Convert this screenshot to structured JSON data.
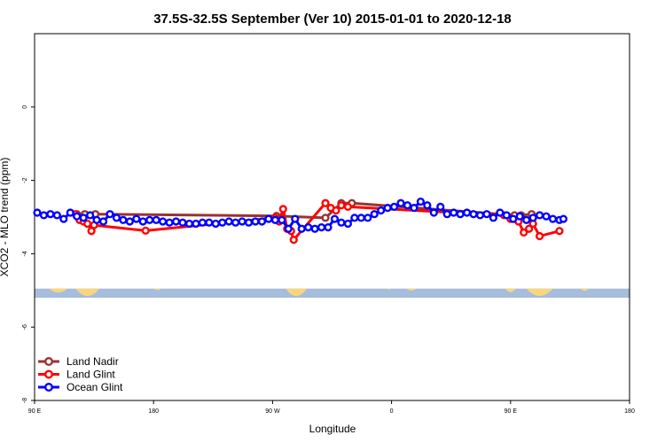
{
  "chart_data": {
    "type": "scatter",
    "title": "37.5S-32.5S September (Ver 10)   2015-01-01 to 2020-12-18",
    "xlabel": "Longitude",
    "ylabel": "XCO2 - MLO trend (ppm)",
    "xlim": [
      90,
      450
    ],
    "ylim": [
      -8,
      2
    ],
    "x_ticks": [
      {
        "value": 90,
        "label": "90 E"
      },
      {
        "value": 180,
        "label": "180"
      },
      {
        "value": 270,
        "label": "90 W"
      },
      {
        "value": 360,
        "label": "0"
      },
      {
        "value": 450,
        "label": "90 E"
      },
      {
        "value": 540,
        "label": "180"
      }
    ],
    "y_ticks": [
      {
        "value": 0,
        "label": "0"
      },
      {
        "value": -2,
        "label": "-2"
      },
      {
        "value": -4,
        "label": "-4"
      },
      {
        "value": -6,
        "label": "-6"
      },
      {
        "value": -8,
        "label": "-8"
      }
    ],
    "grid": false,
    "legend_position": "bottom-left",
    "map_strip": {
      "y_top": -4.95,
      "y_bottom": -5.2,
      "ocean_color": "#a6bddb",
      "land_color": "#f8d57e"
    },
    "series": [
      {
        "name": "Land Nadir",
        "color": "#993333",
        "x": [
          122,
          128,
          136,
          273,
          310,
          322,
          330,
          453,
          458,
          466
        ],
        "y": [
          -2.92,
          -2.92,
          -2.92,
          -2.97,
          -3.02,
          -2.62,
          -2.62,
          -2.95,
          -2.95,
          -2.92
        ]
      },
      {
        "name": "Land Glint",
        "color": "#ff0000",
        "x": [
          121,
          124,
          127,
          130,
          133,
          135,
          174,
          272,
          275,
          278,
          281,
          284,
          286,
          310,
          314,
          318,
          322,
          327,
          445,
          450,
          456,
          460,
          464,
          467,
          472,
          487
        ],
        "y": [
          -2.92,
          -3.08,
          -3.12,
          -3.18,
          -3.38,
          -3.22,
          -3.37,
          -3.02,
          -3.12,
          -2.78,
          -3.32,
          -3.38,
          -3.62,
          -2.62,
          -2.75,
          -2.82,
          -2.68,
          -2.72,
          -2.95,
          -3.05,
          -3.12,
          -3.42,
          -3.32,
          -3.18,
          -3.52,
          -3.38
        ]
      },
      {
        "name": "Ocean Glint",
        "color": "#0000ff",
        "x": [
          92,
          97,
          102,
          107,
          112,
          117,
          122,
          127,
          132,
          137,
          142,
          147,
          152,
          157,
          162,
          167,
          172,
          177,
          182,
          187,
          192,
          197,
          202,
          207,
          212,
          217,
          222,
          227,
          232,
          237,
          242,
          247,
          252,
          257,
          262,
          267,
          272,
          277,
          282,
          287,
          292,
          297,
          302,
          307,
          312,
          317,
          322,
          327,
          332,
          337,
          342,
          347,
          352,
          357,
          362,
          367,
          372,
          377,
          382,
          387,
          392,
          397,
          402,
          407,
          412,
          417,
          422,
          427,
          432,
          437,
          442,
          447,
          452,
          457,
          462,
          467,
          472,
          477,
          482,
          487,
          490
        ],
        "y": [
          -2.88,
          -2.95,
          -2.92,
          -2.95,
          -3.05,
          -2.88,
          -2.98,
          -3.02,
          -2.95,
          -3.08,
          -3.12,
          -2.92,
          -3.02,
          -3.08,
          -3.12,
          -3.05,
          -3.12,
          -3.08,
          -3.08,
          -3.12,
          -3.15,
          -3.12,
          -3.15,
          -3.18,
          -3.18,
          -3.15,
          -3.15,
          -3.18,
          -3.15,
          -3.12,
          -3.15,
          -3.12,
          -3.15,
          -3.12,
          -3.12,
          -3.05,
          -3.08,
          -3.08,
          -3.32,
          -3.05,
          -3.32,
          -3.28,
          -3.32,
          -3.28,
          -3.28,
          -3.05,
          -3.15,
          -3.18,
          -3.02,
          -3.02,
          -3.02,
          -2.92,
          -2.82,
          -2.75,
          -2.72,
          -2.62,
          -2.68,
          -2.75,
          -2.58,
          -2.68,
          -2.88,
          -2.72,
          -2.92,
          -2.88,
          -2.92,
          -2.88,
          -2.92,
          -2.95,
          -2.92,
          -3.02,
          -2.88,
          -2.95,
          -3.05,
          -2.98,
          -3.08,
          -3.02,
          -2.95,
          -2.98,
          -3.05,
          -3.08,
          -3.05
        ]
      }
    ]
  }
}
